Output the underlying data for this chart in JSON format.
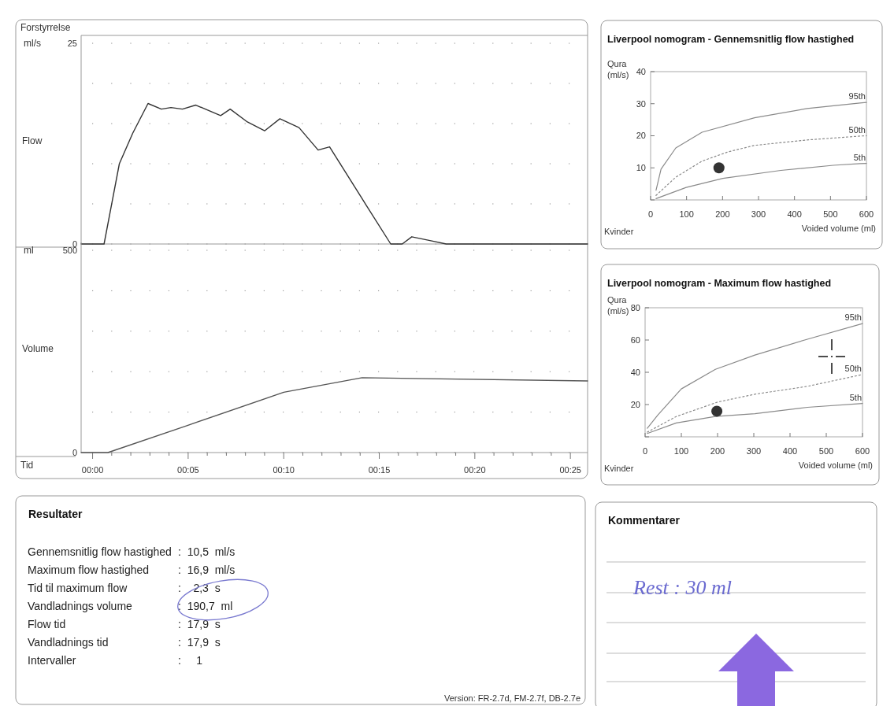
{
  "chart_data": [
    {
      "type": "line",
      "ylabel": "Flow",
      "annotations": [
        "Forstyrrelse",
        "ml/s"
      ],
      "xlim": [
        -0.6,
        25.9
      ],
      "ylim": [
        0,
        25
      ],
      "yticks": [
        0,
        {
          "value": 5,
          "label": null
        },
        {
          "value": 10,
          "label": null
        },
        {
          "value": 15,
          "label": null
        },
        {
          "value": 20,
          "label": null
        },
        25
      ],
      "grid": "y",
      "tick_labels": "y",
      "series": [
        {
          "color": "#333333",
          "x": [
            -0.6,
            0.6,
            1.4,
            2.1,
            2.9,
            3.6,
            4.1,
            4.7,
            5.4,
            6.7,
            7.2,
            8.1,
            9.0,
            9.8,
            10.8,
            11.8,
            12.4,
            14.3,
            15.6,
            16.2,
            16.7,
            17.7,
            18.5,
            25.9
          ],
          "values": [
            0,
            0,
            10.0,
            13.8,
            17.5,
            16.8,
            17.0,
            16.8,
            17.3,
            16.0,
            16.8,
            15.2,
            14.1,
            15.6,
            14.5,
            11.7,
            12.1,
            4.9,
            0,
            0,
            0.9,
            0.4,
            0,
            0
          ]
        }
      ]
    },
    {
      "type": "line",
      "xlabel": "Tid",
      "ylabel": "Volume",
      "annotations": [
        "ml"
      ],
      "xlim": [
        -0.6,
        25.9
      ],
      "ylim": [
        0,
        500
      ],
      "yticks": [
        0,
        {
          "value": 100,
          "label": null
        },
        {
          "value": 200,
          "label": null
        },
        {
          "value": 300,
          "label": null
        },
        {
          "value": 400,
          "label": null
        },
        500
      ],
      "grid": "y",
      "xticks": [
        {
          "value": 0,
          "label": "00:00"
        },
        {
          "value": 1,
          "label": null
        },
        {
          "value": 2,
          "label": null
        },
        {
          "value": 3,
          "label": null
        },
        {
          "value": 4,
          "label": null
        },
        {
          "value": 5,
          "label": "00:05"
        },
        {
          "value": 6,
          "label": null
        },
        {
          "value": 7,
          "label": null
        },
        {
          "value": 8,
          "label": null
        },
        {
          "value": 9,
          "label": null
        },
        {
          "value": 10,
          "label": "00:10"
        },
        {
          "value": 11,
          "label": null
        },
        {
          "value": 12,
          "label": null
        },
        {
          "value": 13,
          "label": null
        },
        {
          "value": 14,
          "label": null
        },
        {
          "value": 15,
          "label": "00:15"
        },
        {
          "value": 16,
          "label": null
        },
        {
          "value": 17,
          "label": null
        },
        {
          "value": 18,
          "label": null
        },
        {
          "value": 19,
          "label": null
        },
        {
          "value": 20,
          "label": "00:20"
        },
        {
          "value": 21,
          "label": null
        },
        {
          "value": 22,
          "label": null
        },
        {
          "value": 23,
          "label": null
        },
        {
          "value": 24,
          "label": null
        },
        {
          "value": 25,
          "label": "00:25"
        }
      ],
      "series": [
        {
          "color": "#555555",
          "x": [
            -0.6,
            0.8,
            4.9,
            10.0,
            14.1,
            25.9
          ],
          "values": [
            0,
            0,
            66,
            149,
            185,
            177
          ]
        }
      ]
    },
    {
      "type": "line",
      "title": "Liverpool nomogram - Gennemsnitlig flow hastighed",
      "xlabel": "Voided volume (ml)",
      "ylabel": "Qura (ml/s)",
      "annotations": [
        "Kvinder"
      ],
      "xlim": [
        0,
        600
      ],
      "xticks": [
        0,
        100,
        200,
        300,
        400,
        500,
        600
      ],
      "ylim": [
        0,
        40
      ],
      "yticks": [
        {
          "value": 0,
          "label": null
        },
        10,
        20,
        30,
        40
      ],
      "series": [
        {
          "name": "95th",
          "color": "#8a8a8a",
          "line_style": "solid",
          "x": [
            15,
            29,
            70,
            143,
            289,
            435,
            582,
            600
          ],
          "values": [
            3,
            9.6,
            16.2,
            21.1,
            25.6,
            28.5,
            30.2,
            30.4
          ]
        },
        {
          "name": "50th",
          "color": "#8a8a8a",
          "line_style": "dotted",
          "x": [
            15,
            70,
            143,
            216,
            289,
            435,
            582,
            600
          ],
          "values": [
            1.4,
            7.1,
            12.1,
            15.0,
            17.0,
            18.7,
            19.9,
            20.0
          ]
        },
        {
          "name": "5th",
          "color": "#8a8a8a",
          "line_style": "solid",
          "x": [
            15,
            99,
            201,
            362,
            508,
            582,
            600
          ],
          "values": [
            0.4,
            3.9,
            6.7,
            9.2,
            10.8,
            11.3,
            11.4
          ]
        },
        {
          "type": "scatter",
          "marker": "circle",
          "color": "#333333",
          "x": [
            190
          ],
          "values": [
            10
          ]
        }
      ]
    },
    {
      "type": "line",
      "title": "Liverpool nomogram - Maximum flow hastighed",
      "xlabel": "Voided volume (ml)",
      "ylabel": "Qura (ml/s)",
      "annotations": [
        "Kvinder"
      ],
      "xlim": [
        0,
        600
      ],
      "xticks": [
        0,
        100,
        200,
        300,
        400,
        500,
        600
      ],
      "ylim": [
        0,
        80
      ],
      "yticks": [
        {
          "value": 0,
          "label": null
        },
        20,
        40,
        60,
        80
      ],
      "series": [
        {
          "name": "95th",
          "color": "#8a8a8a",
          "line_style": "solid",
          "x": [
            6,
            35,
            100,
            194,
            303,
            448,
            600
          ],
          "values": [
            5.3,
            13.5,
            29.7,
            41.8,
            50.7,
            60.5,
            70.2
          ]
        },
        {
          "name": "50th",
          "color": "#8a8a8a",
          "line_style": "dotted",
          "x": [
            6,
            86,
            201,
            303,
            448,
            600
          ],
          "values": [
            2.9,
            12.6,
            21.6,
            26.4,
            31.3,
            38.6
          ]
        },
        {
          "name": "5th",
          "color": "#8a8a8a",
          "line_style": "solid",
          "x": [
            6,
            86,
            194,
            303,
            448,
            600
          ],
          "values": [
            2.1,
            8.6,
            12.6,
            14.3,
            18.3,
            20.7
          ]
        },
        {
          "type": "scatter",
          "marker": "circle",
          "color": "#333333",
          "x": [
            198
          ],
          "values": [
            15.9
          ]
        }
      ]
    },
    {
      "type": "other",
      "title": "Resultater",
      "annotations": [
        "Gennemsnitlig flow hastighed",
        ":  10,5  ml/s",
        "Maximum flow hastighed",
        ":  16,9  ml/s",
        "Tid til maximum flow",
        ":    2,3  s",
        "Vandladnings volume",
        ":  190,7  ml",
        "Flow tid",
        ":  17,9  s",
        "Vandladnings tid",
        ":  17,9  s",
        "Intervaller",
        ":     1",
        "Version: FR-2.7d, FM-2.7f, DB-2.7e"
      ]
    },
    {
      "type": "other",
      "title": "Kommentarer",
      "annotations": [
        "Rest : 30 ml"
      ]
    }
  ]
}
